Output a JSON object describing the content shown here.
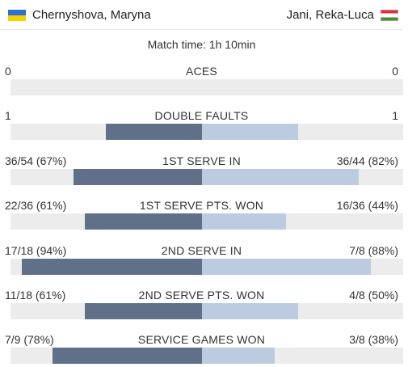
{
  "match": {
    "player_left": {
      "name": "Chernyshova, Maryna",
      "flag": "ukraine-flag-icon"
    },
    "player_right": {
      "name": "Jani, Reka-Luca",
      "flag": "hungary-flag-icon"
    },
    "time_label": "Match time: 1h 10min"
  },
  "colors": {
    "left_bar": "#5f7088",
    "right_bar": "#bccbe0",
    "track": "#ececec"
  },
  "stats": [
    {
      "label": "ACES",
      "left": "0",
      "right": "0",
      "left_share": 0.0,
      "right_share": 0.0
    },
    {
      "label": "DOUBLE FAULTS",
      "left": "1",
      "right": "1",
      "left_share": 0.5,
      "right_share": 0.5
    },
    {
      "label": "1ST SERVE IN",
      "left": "36/54 (67%)",
      "right": "36/44 (82%)",
      "left_share": 0.67,
      "right_share": 0.82
    },
    {
      "label": "1ST SERVE PTS. WON",
      "left": "22/36 (61%)",
      "right": "16/36 (44%)",
      "left_share": 0.61,
      "right_share": 0.44
    },
    {
      "label": "2ND SERVE IN",
      "left": "17/18 (94%)",
      "right": "7/8 (88%)",
      "left_share": 0.94,
      "right_share": 0.88
    },
    {
      "label": "2ND SERVE PTS. WON",
      "left": "11/18 (61%)",
      "right": "4/8 (50%)",
      "left_share": 0.61,
      "right_share": 0.5
    },
    {
      "label": "SERVICE GAMES WON",
      "left": "7/9 (78%)",
      "right": "3/8 (38%)",
      "left_share": 0.78,
      "right_share": 0.38
    }
  ]
}
